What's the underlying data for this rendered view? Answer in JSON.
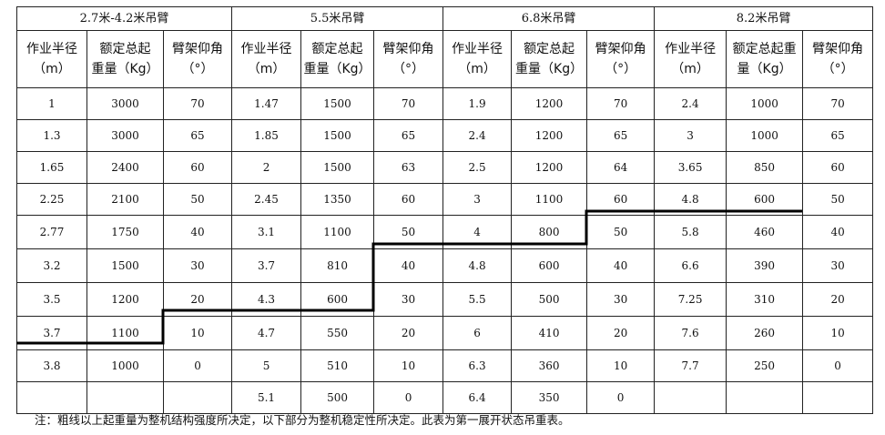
{
  "groups": [
    "2.7米-4.2米吊臂",
    "5.5米吊臂",
    "6.8米吊臂",
    "8.2米吊臂"
  ],
  "subheaders": [
    [
      "作业半径",
      "（m）"
    ],
    [
      "额定总起",
      "重量（Kg）"
    ],
    [
      "臂架仰角",
      "（°）"
    ],
    [
      "作业半径",
      "（m）"
    ],
    [
      "额定总起",
      "重量（Kg）"
    ],
    [
      "臂架仰角",
      "（°）"
    ],
    [
      "作业半径",
      "（m）"
    ],
    [
      "额定总起",
      "重量（Kg）"
    ],
    [
      "臂架仰角",
      "（°）"
    ],
    [
      "作业半径",
      "（m）"
    ],
    [
      "额定总起重",
      "量（Kg）"
    ],
    [
      "臂架仰角",
      "（°）"
    ]
  ],
  "rows": [
    [
      "1",
      "3000",
      "70",
      "1.47",
      "1500",
      "70",
      "1.9",
      "1200",
      "70",
      "2.4",
      "1000",
      "70"
    ],
    [
      "1.3",
      "3000",
      "65",
      "1.85",
      "1500",
      "65",
      "2.4",
      "1200",
      "65",
      "3",
      "1000",
      "65"
    ],
    [
      "1.65",
      "2400",
      "60",
      "2",
      "1500",
      "63",
      "2.5",
      "1200",
      "64",
      "3.65",
      "850",
      "60"
    ],
    [
      "2.25",
      "2100",
      "50",
      "2.45",
      "1350",
      "60",
      "3",
      "1100",
      "60",
      "4.8",
      "600",
      "50"
    ],
    [
      "2.77",
      "1750",
      "40",
      "3.1",
      "1100",
      "50",
      "4",
      "800",
      "50",
      "5.8",
      "460",
      "40"
    ],
    [
      "3.2",
      "1500",
      "30",
      "3.7",
      "810",
      "40",
      "4.8",
      "600",
      "40",
      "6.6",
      "390",
      "30"
    ],
    [
      "3.5",
      "1200",
      "20",
      "4.3",
      "600",
      "30",
      "5.5",
      "500",
      "30",
      "7.25",
      "310",
      "20"
    ],
    [
      "3.7",
      "1100",
      "10",
      "4.7",
      "550",
      "20",
      "6",
      "410",
      "20",
      "7.6",
      "260",
      "10"
    ],
    [
      "3.8",
      "1000",
      "0",
      "5",
      "510",
      "10",
      "6.3",
      "360",
      "10",
      "7.7",
      "250",
      "0"
    ],
    [
      "",
      "",
      "",
      "5.1",
      "500",
      "0",
      "6.4",
      "350",
      "0",
      "",
      "",
      ""
    ]
  ],
  "note": "注：粗线以上起重量为整机结构强度所决定，以下部分为整机稳定性所决定。此表为第一展开状态吊重表。"
}
